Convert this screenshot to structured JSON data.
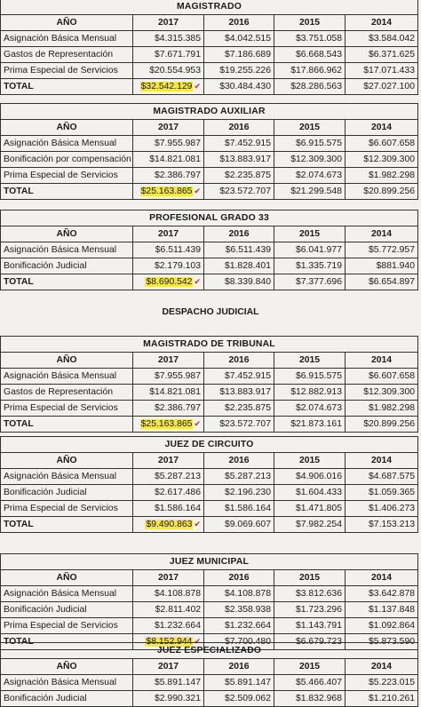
{
  "header_years": [
    "AÑO",
    "2017",
    "2016",
    "2015",
    "2014"
  ],
  "section_heading": "DESPACHO JUDICIAL",
  "tables": [
    {
      "title": "MAGISTRADO",
      "rows": [
        [
          "Asignación Básica Mensual",
          "$4.315.385",
          "$4.042.515",
          "$3.751.058",
          "$3.584.042"
        ],
        [
          "Gastos de Representación",
          "$7.671.791",
          "$7.186.689",
          "$6.668.543",
          "$6.371.625"
        ],
        [
          "Prima Especial de Servicios",
          "$20.554.953",
          "$19.255.226",
          "$17.866.962",
          "$17.071.433"
        ]
      ],
      "total": [
        "TOTAL",
        "$32.542.129",
        "$30.484.430",
        "$28.286.563",
        "$27.027.100"
      ]
    },
    {
      "title": "MAGISTRADO AUXILIAR",
      "rows": [
        [
          "Asignación Básica Mensual",
          "$7.955.987",
          "$7.452.915",
          "$6.915.575",
          "$6.607.658"
        ],
        [
          "Bonificación por compensación",
          "$14.821.081",
          "$13.883.917",
          "$12.309.300",
          "$12.309.300"
        ],
        [
          "Prima Especial de Servicios",
          "$2.386.797",
          "$2.235.875",
          "$2.074.673",
          "$1.982.298"
        ]
      ],
      "total": [
        "TOTAL",
        "$25.163.865",
        "$23.572.707",
        "$21.299.548",
        "$20.899.256"
      ]
    },
    {
      "title": "PROFESIONAL GRADO 33",
      "rows": [
        [
          "Asignación Básica Mensual",
          "$6.511.439",
          "$6.511.439",
          "$6.041.977",
          "$5.772.957"
        ],
        [
          "Bonificación Judicial",
          "$2.179.103",
          "$1.828.401",
          "$1.335.719",
          "$881.940"
        ]
      ],
      "total": [
        "TOTAL",
        "$8.690.542",
        "$8.339.840",
        "$7.377.696",
        "$6.654.897"
      ]
    },
    {
      "title": "MAGISTRADO DE TRIBUNAL",
      "rows": [
        [
          "Asignación Básica Mensual",
          "$7.955.987",
          "$7.452.915",
          "$6.915.575",
          "$6.607.658"
        ],
        [
          "Gastos de Representación",
          "$14.821.081",
          "$13.883.917",
          "$12.882.913",
          "$12.309.300"
        ],
        [
          "Prima Especial de Servicios",
          "$2.386.797",
          "$2.235.875",
          "$2.074.673",
          "$1.982.298"
        ]
      ],
      "total": [
        "TOTAL",
        "$25.163.865",
        "$23.572.707",
        "$21.873.161",
        "$20.899.256"
      ]
    },
    {
      "title": "JUEZ DE CIRCUITO",
      "rows": [
        [
          "Asignación Básica Mensual",
          "$5.287.213",
          "$5.287.213",
          "$4.906.016",
          "$4.687.575"
        ],
        [
          "Bonificación Judicial",
          "$2.617.486",
          "$2.196.230",
          "$1.604.433",
          "$1.059.365"
        ],
        [
          "Prima Especial de Servicios",
          "$1.586.164",
          "$1.586.164",
          "$1.471.805",
          "$1.406.273"
        ]
      ],
      "total": [
        "TOTAL",
        "$9.490.863",
        "$9.069.607",
        "$7.982.254",
        "$7.153.213"
      ]
    },
    {
      "title": "JUEZ MUNICIPAL",
      "rows": [
        [
          "Asignación Básica Mensual",
          "$4.108.878",
          "$4.108.878",
          "$3.812.636",
          "$3.642.878"
        ],
        [
          "Bonificación Judicial",
          "$2.811.402",
          "$2.358.938",
          "$1.723.296",
          "$1.137.848"
        ],
        [
          "Prima Especial de Servicios",
          "$1.232.664",
          "$1.232.664",
          "$1.143.791",
          "$1.092.864"
        ]
      ],
      "total": [
        "TOTAL",
        "$8.152.944",
        "$7.700.480",
        "$6.679.723",
        "$5.873.590"
      ]
    },
    {
      "title": "JUEZ ESPECIALIZADO",
      "rows": [
        [
          "Asignación Básica Mensual",
          "$5.891.147",
          "$5.891.147",
          "$5.466.407",
          "$5.223.015"
        ],
        [
          "Bonificación Judicial",
          "$2.990.321",
          "$2.509.062",
          "$1.832.968",
          "$1.210.261"
        ]
      ],
      "total": null
    }
  ]
}
